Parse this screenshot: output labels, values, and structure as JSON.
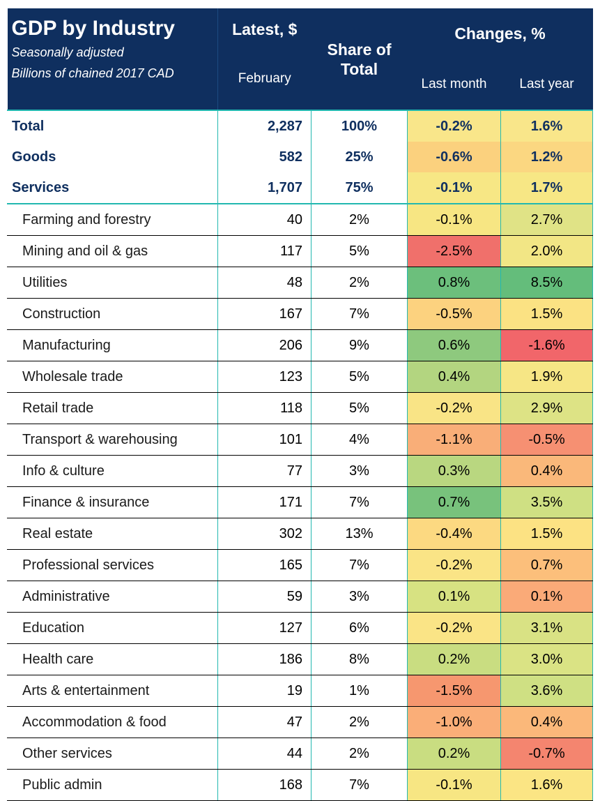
{
  "header": {
    "title": "GDP by Industry",
    "subtitle_line1": "Seasonally adjusted",
    "subtitle_line2": "Billions of chained 2017 CAD",
    "latest": "Latest, $",
    "latest_period": "February",
    "share": "Share of Total",
    "changes": "Changes, %",
    "last_month": "Last month",
    "last_year": "Last year"
  },
  "chart_data": {
    "type": "table",
    "title": "GDP by Industry",
    "columns": [
      "Latest, $ (February)",
      "Share of Total",
      "Last month",
      "Last year"
    ],
    "rows": [
      {
        "name": "Total",
        "latest": "2,287",
        "share": "100%",
        "last_month": "-0.2%",
        "last_year": "1.6%",
        "lm_value": -0.2,
        "ly_value": 1.6,
        "lm_color": "#f9e68a",
        "ly_color": "#f9e68a",
        "aggregate": true
      },
      {
        "name": "Goods",
        "latest": "582",
        "share": "25%",
        "last_month": "-0.6%",
        "last_year": "1.2%",
        "lm_value": -0.6,
        "ly_value": 1.2,
        "lm_color": "#fbd17e",
        "ly_color": "#fbd781",
        "aggregate": true
      },
      {
        "name": "Services",
        "latest": "1,707",
        "share": "75%",
        "last_month": "-0.1%",
        "last_year": "1.7%",
        "lm_value": -0.1,
        "ly_value": 1.7,
        "lm_color": "#f7e785",
        "ly_color": "#f7e785",
        "aggregate": true
      },
      {
        "name": "Farming and forestry",
        "latest": "40",
        "share": "2%",
        "last_month": "-0.1%",
        "last_year": "2.7%",
        "lm_value": -0.1,
        "ly_value": 2.7,
        "lm_color": "#f7e683",
        "ly_color": "#e0e386"
      },
      {
        "name": "Mining and oil & gas",
        "latest": "117",
        "share": "5%",
        "last_month": "-2.5%",
        "last_year": "2.0%",
        "lm_value": -2.5,
        "ly_value": 2.0,
        "lm_color": "#f0706b",
        "ly_color": "#f2e685"
      },
      {
        "name": "Utilities",
        "latest": "48",
        "share": "2%",
        "last_month": "0.8%",
        "last_year": "8.5%",
        "lm_value": 0.8,
        "ly_value": 8.5,
        "lm_color": "#6cbf7c",
        "ly_color": "#64bd7b"
      },
      {
        "name": "Construction",
        "latest": "167",
        "share": "7%",
        "last_month": "-0.5%",
        "last_year": "1.5%",
        "lm_value": -0.5,
        "ly_value": 1.5,
        "lm_color": "#fcd27f",
        "ly_color": "#fbe283"
      },
      {
        "name": "Manufacturing",
        "latest": "206",
        "share": "9%",
        "last_month": "0.6%",
        "last_year": "-1.6%",
        "lm_value": 0.6,
        "ly_value": -1.6,
        "lm_color": "#8ec97e",
        "ly_color": "#f1666a"
      },
      {
        "name": "Wholesale trade",
        "latest": "123",
        "share": "5%",
        "last_month": "0.4%",
        "last_year": "1.9%",
        "lm_value": 0.4,
        "ly_value": 1.9,
        "lm_color": "#b3d580",
        "ly_color": "#f6e685"
      },
      {
        "name": "Retail trade",
        "latest": "118",
        "share": "5%",
        "last_month": "-0.2%",
        "last_year": "2.9%",
        "lm_value": -0.2,
        "ly_value": 2.9,
        "lm_color": "#f9e486",
        "ly_color": "#dde385"
      },
      {
        "name": "Transport & warehousing",
        "latest": "101",
        "share": "4%",
        "last_month": "-1.1%",
        "last_year": "-0.5%",
        "lm_value": -1.1,
        "ly_value": -0.5,
        "lm_color": "#f9ae78",
        "ly_color": "#f69072"
      },
      {
        "name": "Info & culture",
        "latest": "77",
        "share": "3%",
        "last_month": "0.3%",
        "last_year": "0.4%",
        "lm_value": 0.3,
        "ly_value": 0.4,
        "lm_color": "#b9d780",
        "ly_color": "#fab87a"
      },
      {
        "name": "Finance & insurance",
        "latest": "171",
        "share": "7%",
        "last_month": "0.7%",
        "last_year": "3.5%",
        "lm_value": 0.7,
        "ly_value": 3.5,
        "lm_color": "#78c27c",
        "ly_color": "#cfe083"
      },
      {
        "name": "Real estate",
        "latest": "302",
        "share": "13%",
        "last_month": "-0.4%",
        "last_year": "1.5%",
        "lm_value": -0.4,
        "ly_value": 1.5,
        "lm_color": "#fcd981",
        "ly_color": "#fce283"
      },
      {
        "name": "Professional services",
        "latest": "165",
        "share": "7%",
        "last_month": "-0.2%",
        "last_year": "0.7%",
        "lm_value": -0.2,
        "ly_value": 0.7,
        "lm_color": "#fae486",
        "ly_color": "#fcbf7b"
      },
      {
        "name": "Administrative",
        "latest": "59",
        "share": "3%",
        "last_month": "0.1%",
        "last_year": "0.1%",
        "lm_value": 0.1,
        "ly_value": 0.1,
        "lm_color": "#d7e282",
        "ly_color": "#faaa78"
      },
      {
        "name": "Education",
        "latest": "127",
        "share": "6%",
        "last_month": "-0.2%",
        "last_year": "3.1%",
        "lm_value": -0.2,
        "ly_value": 3.1,
        "lm_color": "#fae486",
        "ly_color": "#d9e284"
      },
      {
        "name": "Health care",
        "latest": "186",
        "share": "8%",
        "last_month": "0.2%",
        "last_year": "3.0%",
        "lm_value": 0.2,
        "ly_value": 3.0,
        "lm_color": "#c9dd81",
        "ly_color": "#dae384"
      },
      {
        "name": "Arts & entertainment",
        "latest": "19",
        "share": "1%",
        "last_month": "-1.5%",
        "last_year": "3.6%",
        "lm_value": -1.5,
        "ly_value": 3.6,
        "lm_color": "#f6976f",
        "ly_color": "#cfe083"
      },
      {
        "name": "Accommodation & food",
        "latest": "47",
        "share": "2%",
        "last_month": "-1.0%",
        "last_year": "0.4%",
        "lm_value": -1.0,
        "ly_value": 0.4,
        "lm_color": "#faae78",
        "ly_color": "#fbb87a"
      },
      {
        "name": "Other services",
        "latest": "44",
        "share": "2%",
        "last_month": "0.2%",
        "last_year": "-0.7%",
        "lm_value": 0.2,
        "ly_value": -0.7,
        "lm_color": "#c9dd81",
        "ly_color": "#f4856f"
      },
      {
        "name": "Public admin",
        "latest": "168",
        "share": "7%",
        "last_month": "-0.1%",
        "last_year": "1.6%",
        "lm_value": -0.1,
        "ly_value": 1.6,
        "lm_color": "#f7e683",
        "ly_color": "#fbe584"
      }
    ]
  },
  "colors": {
    "header_bg": "#0f2f5f",
    "header_text": "#ffffff",
    "aggregate_text": "#0f2f5f",
    "teal_border": "#22b8b0"
  }
}
